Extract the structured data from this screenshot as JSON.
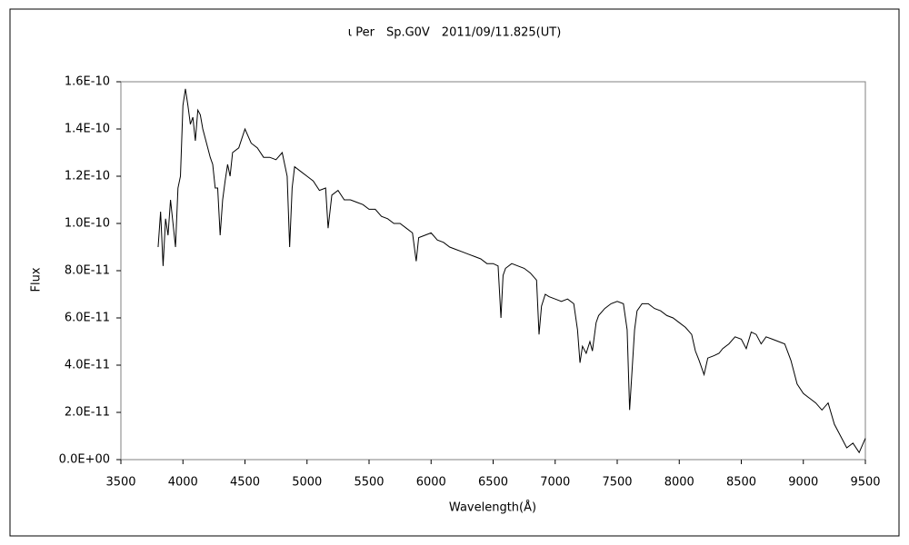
{
  "chart_data": {
    "type": "line",
    "title": "ι Per　Sp.G0V　2011/09/11.825(UT)",
    "xlabel": "Wavelength(Å)",
    "ylabel": "Flux",
    "x": [
      3800,
      3820,
      3840,
      3860,
      3880,
      3900,
      3920,
      3940,
      3960,
      3980,
      4000,
      4020,
      4040,
      4060,
      4080,
      4100,
      4120,
      4140,
      4160,
      4180,
      4200,
      4220,
      4240,
      4260,
      4280,
      4300,
      4320,
      4340,
      4360,
      4380,
      4400,
      4450,
      4500,
      4550,
      4600,
      4650,
      4700,
      4750,
      4800,
      4840,
      4860,
      4880,
      4900,
      4950,
      5000,
      5050,
      5100,
      5150,
      5170,
      5200,
      5250,
      5300,
      5350,
      5400,
      5450,
      5500,
      5550,
      5600,
      5650,
      5700,
      5750,
      5800,
      5850,
      5880,
      5900,
      5950,
      6000,
      6050,
      6100,
      6150,
      6200,
      6250,
      6300,
      6350,
      6400,
      6450,
      6500,
      6540,
      6563,
      6580,
      6600,
      6650,
      6700,
      6750,
      6800,
      6850,
      6870,
      6890,
      6920,
      6950,
      7000,
      7050,
      7100,
      7150,
      7180,
      7200,
      7220,
      7250,
      7280,
      7300,
      7330,
      7350,
      7400,
      7450,
      7500,
      7550,
      7580,
      7600,
      7620,
      7640,
      7660,
      7700,
      7750,
      7800,
      7850,
      7900,
      7950,
      8000,
      8050,
      8100,
      8130,
      8160,
      8200,
      8230,
      8280,
      8320,
      8350,
      8400,
      8450,
      8500,
      8540,
      8580,
      8620,
      8660,
      8700,
      8750,
      8800,
      8850,
      8900,
      8950,
      9000,
      9050,
      9100,
      9150,
      9200,
      9250,
      9300,
      9350,
      9400,
      9450,
      9500
    ],
    "series": [
      {
        "name": "Flux",
        "color": "#000000",
        "values": [
          9e-11,
          1.05e-10,
          8.2e-11,
          1.02e-10,
          9.5e-11,
          1.1e-10,
          1e-10,
          9e-11,
          1.15e-10,
          1.2e-10,
          1.5e-10,
          1.57e-10,
          1.5e-10,
          1.42e-10,
          1.45e-10,
          1.35e-10,
          1.48e-10,
          1.46e-10,
          1.4e-10,
          1.36e-10,
          1.32e-10,
          1.28e-10,
          1.25e-10,
          1.15e-10,
          1.15e-10,
          9.5e-11,
          1.1e-10,
          1.18e-10,
          1.25e-10,
          1.2e-10,
          1.3e-10,
          1.32e-10,
          1.4e-10,
          1.34e-10,
          1.32e-10,
          1.28e-10,
          1.28e-10,
          1.27e-10,
          1.3e-10,
          1.2e-10,
          9e-11,
          1.15e-10,
          1.24e-10,
          1.22e-10,
          1.2e-10,
          1.18e-10,
          1.14e-10,
          1.15e-10,
          9.8e-11,
          1.12e-10,
          1.14e-10,
          1.1e-10,
          1.1e-10,
          1.09e-10,
          1.08e-10,
          1.06e-10,
          1.06e-10,
          1.03e-10,
          1.02e-10,
          1e-10,
          1e-10,
          9.8e-11,
          9.6e-11,
          8.4e-11,
          9.4e-11,
          9.5e-11,
          9.6e-11,
          9.3e-11,
          9.2e-11,
          9e-11,
          8.9e-11,
          8.8e-11,
          8.7e-11,
          8.6e-11,
          8.5e-11,
          8.3e-11,
          8.3e-11,
          8.2e-11,
          6e-11,
          7.8e-11,
          8.1e-11,
          8.3e-11,
          8.2e-11,
          8.1e-11,
          7.9e-11,
          7.6e-11,
          5.3e-11,
          6.5e-11,
          7e-11,
          6.9e-11,
          6.8e-11,
          6.7e-11,
          6.8e-11,
          6.6e-11,
          5.5e-11,
          4.1e-11,
          4.8e-11,
          4.5e-11,
          5e-11,
          4.6e-11,
          5.8e-11,
          6.1e-11,
          6.4e-11,
          6.6e-11,
          6.7e-11,
          6.6e-11,
          5.5e-11,
          2.1e-11,
          3.8e-11,
          5.5e-11,
          6.3e-11,
          6.6e-11,
          6.6e-11,
          6.4e-11,
          6.3e-11,
          6.1e-11,
          6e-11,
          5.8e-11,
          5.6e-11,
          5.3e-11,
          4.6e-11,
          4.2e-11,
          3.6e-11,
          4.3e-11,
          4.4e-11,
          4.5e-11,
          4.7e-11,
          4.9e-11,
          5.2e-11,
          5.1e-11,
          4.7e-11,
          5.4e-11,
          5.3e-11,
          4.9e-11,
          5.2e-11,
          5.1e-11,
          5e-11,
          4.9e-11,
          4.2e-11,
          3.2e-11,
          2.8e-11,
          2.6e-11,
          2.4e-11,
          2.1e-11,
          2.4e-11,
          1.5e-11,
          1e-11,
          5e-12,
          7e-12,
          3e-12,
          9e-12
        ]
      }
    ],
    "xlim": [
      3500,
      9500
    ],
    "xticks": [
      3500,
      4000,
      4500,
      5000,
      5500,
      6000,
      6500,
      7000,
      7500,
      8000,
      8500,
      9000,
      9500
    ],
    "ylim": [
      0,
      1.6e-10
    ],
    "yticks": [
      {
        "value": 0,
        "label": "0.0E+00"
      },
      {
        "value": 2e-11,
        "label": "2.0E-11"
      },
      {
        "value": 4e-11,
        "label": "4.0E-11"
      },
      {
        "value": 6e-11,
        "label": "6.0E-11"
      },
      {
        "value": 8e-11,
        "label": "8.0E-11"
      },
      {
        "value": 1e-10,
        "label": "1.0E-10"
      },
      {
        "value": 1.2e-10,
        "label": "1.2E-10"
      },
      {
        "value": 1.4e-10,
        "label": "1.4E-10"
      },
      {
        "value": 1.6e-10,
        "label": "1.6E-10"
      }
    ],
    "grid": false
  }
}
